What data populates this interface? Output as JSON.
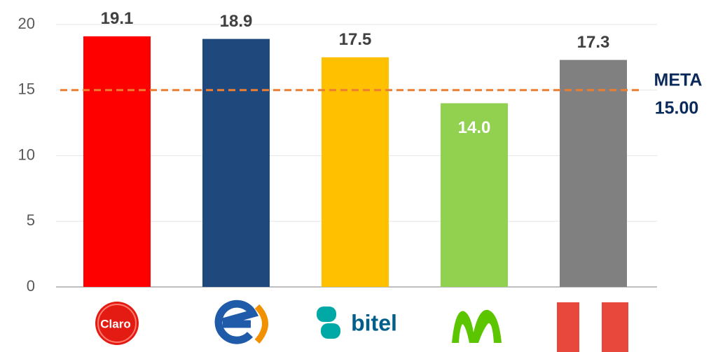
{
  "chart_data": {
    "type": "bar",
    "categories": [
      "Claro",
      null,
      "bitel",
      null,
      null
    ],
    "values": [
      19.1,
      18.9,
      17.5,
      14.0,
      17.3
    ],
    "value_labels": [
      "19.1",
      "18.9",
      "17.5",
      "14.0",
      "17.3"
    ],
    "label_position": [
      "above",
      "above",
      "above",
      "inside",
      "above"
    ],
    "colors": [
      "#ff0000",
      "#1f497d",
      "#ffc000",
      "#92d050",
      "#808080"
    ],
    "ylim": [
      0,
      20
    ],
    "yticks": [
      0,
      5,
      10,
      15,
      20
    ],
    "grid": true,
    "meta": {
      "name": "META",
      "value": 15,
      "value_label": "15.00",
      "color": "#ed7d31"
    }
  }
}
